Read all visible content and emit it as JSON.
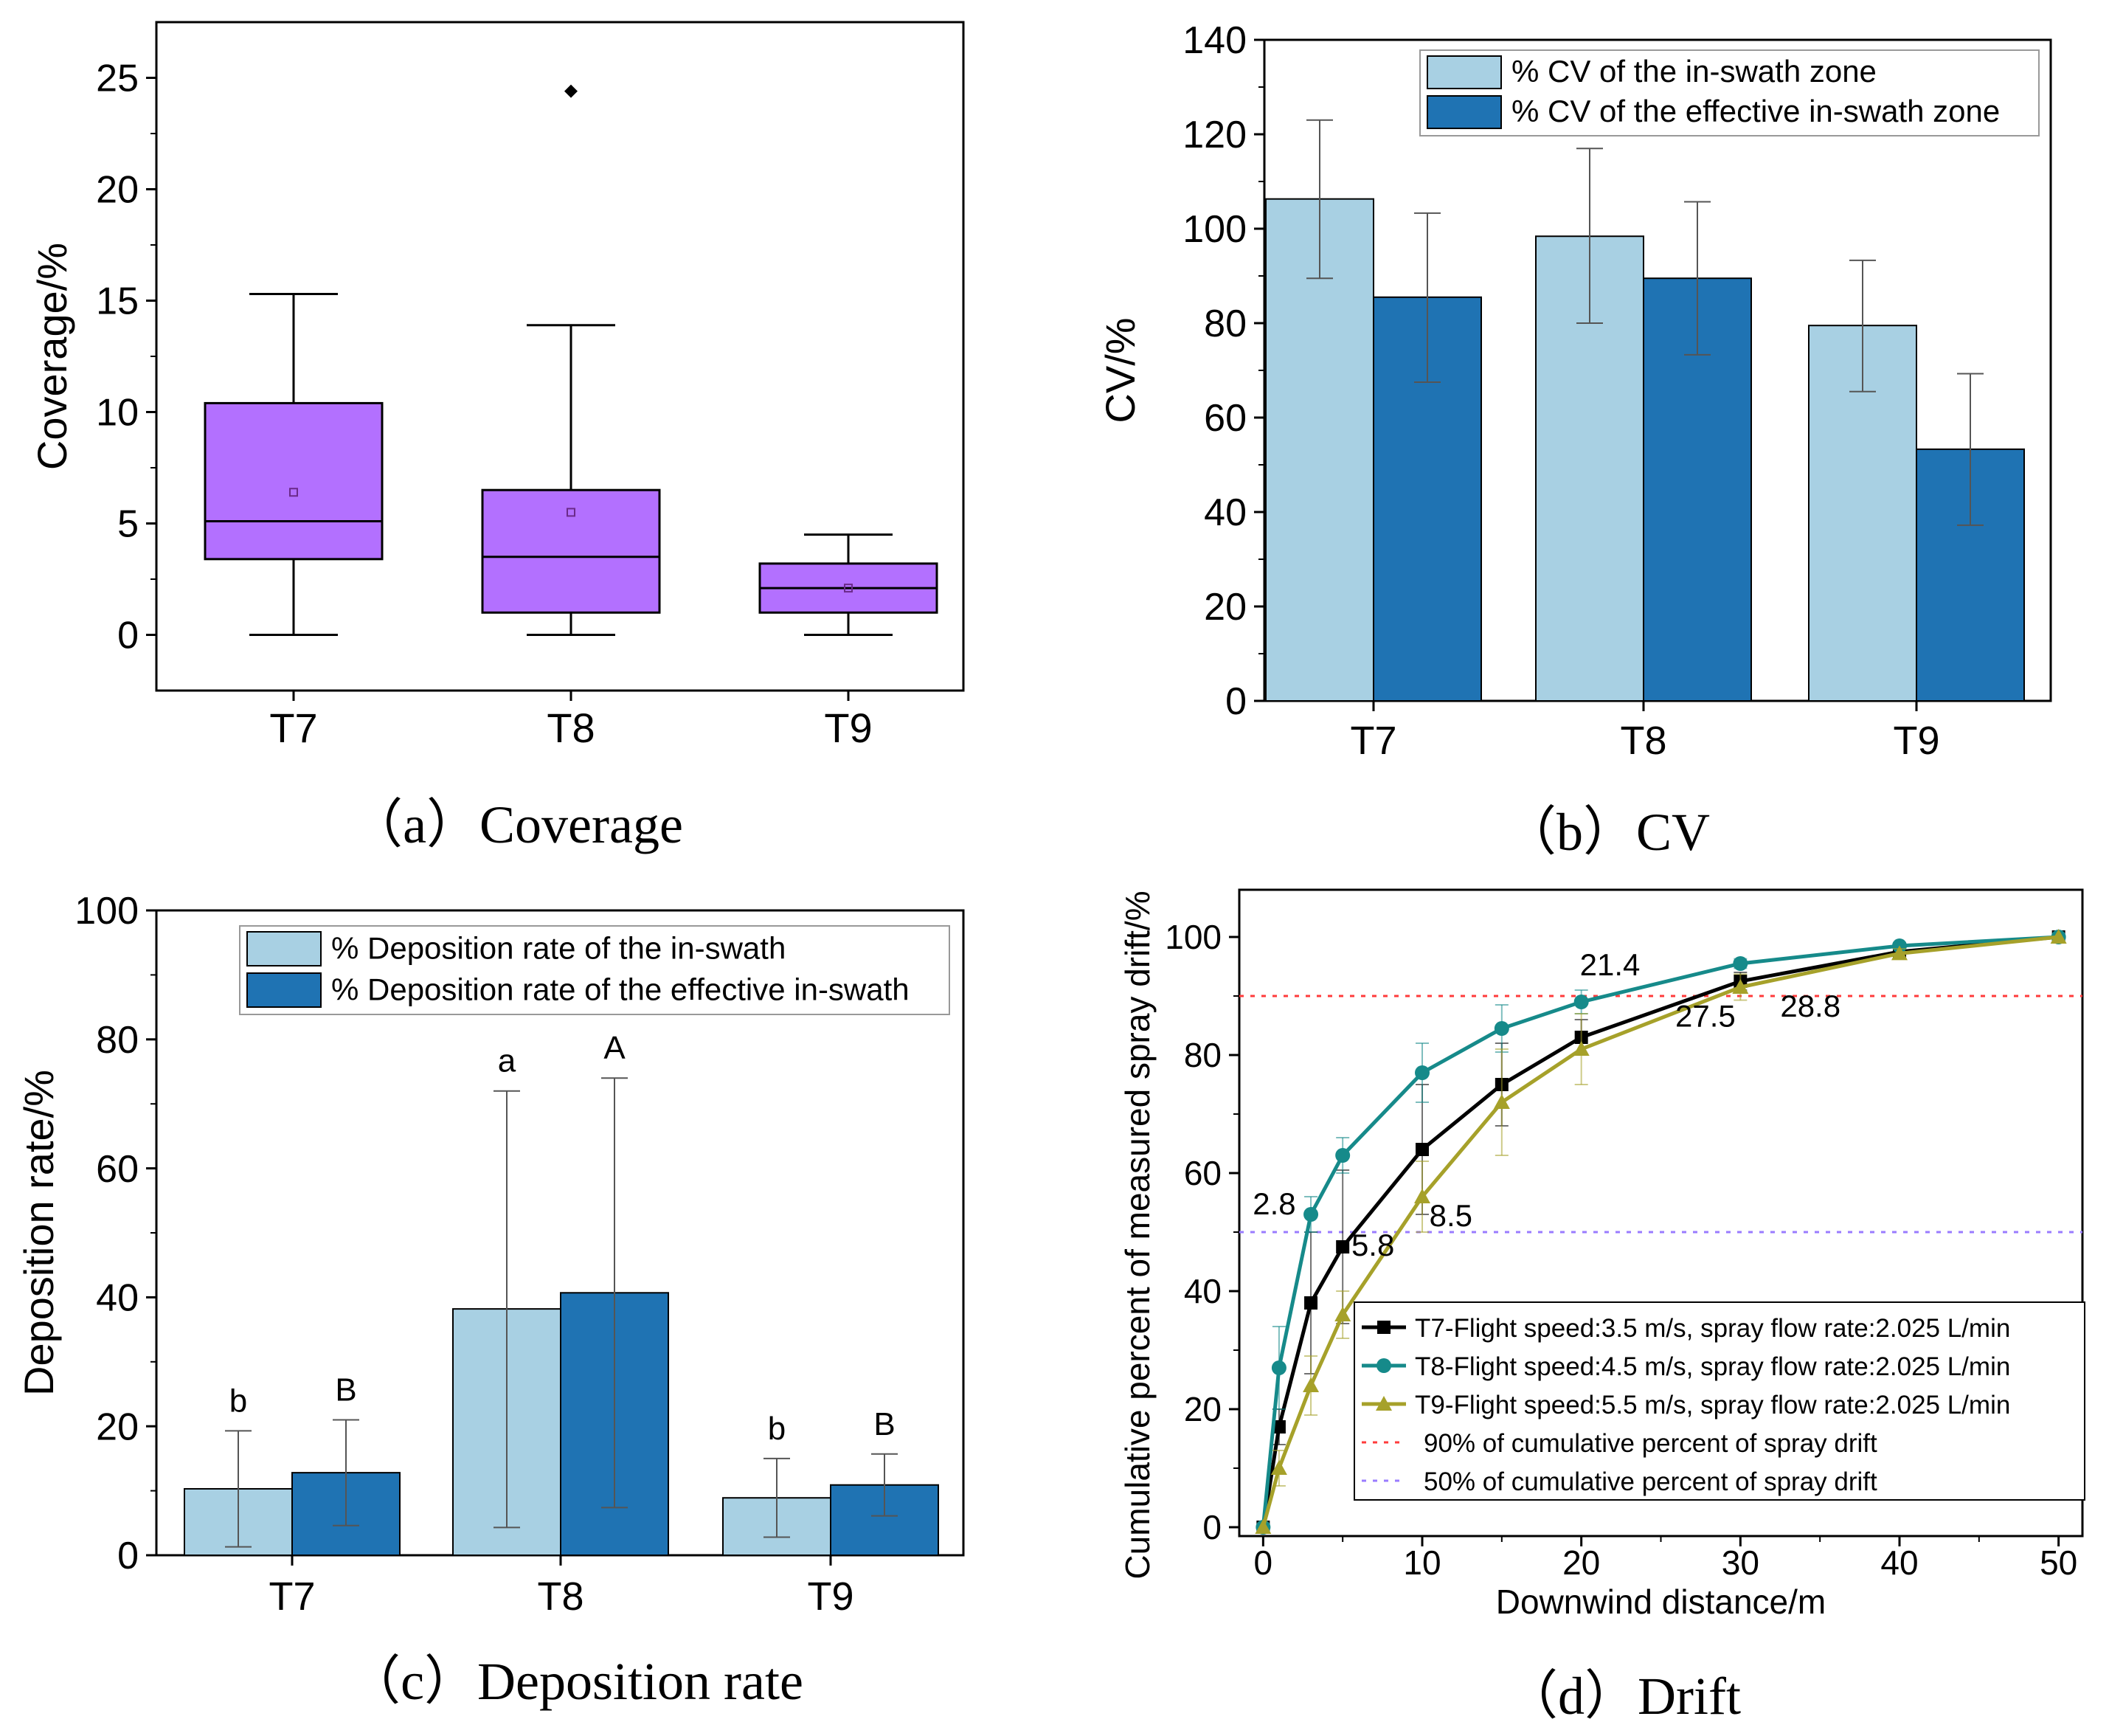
{
  "chart_data": [
    {
      "type": "box",
      "title": "",
      "caption": "（a）Coverage",
      "ylabel": "Coverage/%",
      "xlabel": "",
      "ylim": [
        -2.5,
        27.5
      ],
      "yticks": [
        0,
        5,
        10,
        15,
        20,
        25
      ],
      "grid": false,
      "box_color": "#b370ff",
      "categories": [
        "T7",
        "T8",
        "T9"
      ],
      "boxes": [
        {
          "name": "T7",
          "min": 0,
          "q1": 3.4,
          "median": 5.1,
          "q3": 10.4,
          "max": 15.3,
          "mean": 6.4,
          "outliers": []
        },
        {
          "name": "T8",
          "min": 0,
          "q1": 1.0,
          "median": 3.5,
          "q3": 6.5,
          "max": 13.9,
          "mean": 5.5,
          "outliers": [
            24.4
          ]
        },
        {
          "name": "T9",
          "min": 0,
          "q1": 1.0,
          "median": 2.1,
          "q3": 3.2,
          "max": 4.5,
          "mean": 2.1,
          "outliers": []
        }
      ]
    },
    {
      "type": "bar",
      "caption": "（b）CV",
      "ylabel": "CV/%",
      "xlabel": "",
      "ylim": [
        0,
        140
      ],
      "yticks": [
        0,
        20,
        40,
        60,
        80,
        100,
        120,
        140
      ],
      "grid": false,
      "legend_position": "top-right",
      "categories": [
        "T7",
        "T8",
        "T9"
      ],
      "series": [
        {
          "name": "% CV of the in-swath zone",
          "color": "#a8d0e3",
          "values": [
            106.3,
            98.4,
            79.5
          ],
          "err_low": [
            89.5,
            80.0,
            65.5
          ],
          "err_high": [
            123.0,
            117.0,
            93.3
          ]
        },
        {
          "name": "% CV of the effective in-swath zone",
          "color": "#1f73b3",
          "values": [
            85.5,
            89.5,
            53.3
          ],
          "err_low": [
            67.5,
            73.3,
            37.2
          ],
          "err_high": [
            103.3,
            105.7,
            69.3
          ]
        }
      ]
    },
    {
      "type": "bar",
      "caption": "（c）Deposition rate",
      "ylabel": "Deposition rate/%",
      "xlabel": "",
      "ylim": [
        0,
        100
      ],
      "yticks": [
        0,
        20,
        40,
        60,
        80,
        100
      ],
      "grid": false,
      "legend_position": "top-right",
      "categories": [
        "T7",
        "T8",
        "T9"
      ],
      "series": [
        {
          "name": "% Deposition rate of the in-swath",
          "color": "#a8d0e3",
          "values": [
            10.3,
            38.2,
            8.9
          ],
          "err_low": [
            1.3,
            4.3,
            2.8
          ],
          "err_high": [
            19.3,
            72.0,
            15.0
          ],
          "letters": [
            "b",
            "a",
            "b"
          ]
        },
        {
          "name": "% Deposition rate of the effective in-swath",
          "color": "#1f73b3",
          "values": [
            12.8,
            40.7,
            10.9
          ],
          "err_low": [
            4.6,
            7.4,
            6.1
          ],
          "err_high": [
            21.0,
            74.0,
            15.7
          ],
          "letters": [
            "B",
            "A",
            "B"
          ]
        }
      ]
    },
    {
      "type": "line",
      "caption": "（d）Drift",
      "xlabel": "Downwind distance/m",
      "ylabel": "Cumulative percent of measured spray drift/%",
      "xlim": [
        -1.5,
        51.5
      ],
      "ylim": [
        -1.5,
        108
      ],
      "xticks": [
        0,
        10,
        20,
        30,
        40,
        50
      ],
      "yticks": [
        0,
        20,
        40,
        60,
        80,
        100
      ],
      "grid": false,
      "legend_position": "bottom-right",
      "x": [
        0,
        1,
        3,
        5,
        10,
        15,
        20,
        30,
        40,
        50
      ],
      "series": [
        {
          "name": "T7-Flight speed:3.5 m/s, spray flow rate:2.025 L/min",
          "color": "#000000",
          "marker": "square",
          "values": [
            0,
            17,
            38,
            47.5,
            64,
            75,
            83,
            92.5,
            97.5,
            100
          ],
          "err": [
            0,
            3,
            12,
            13,
            11,
            7,
            3,
            1.5,
            0.6,
            0
          ]
        },
        {
          "name": "T8-Flight speed:4.5 m/s, spray flow rate:2.025 L/min",
          "color": "#168a8a",
          "marker": "circle",
          "values": [
            0,
            27,
            53,
            63,
            77,
            84.5,
            89,
            95.5,
            98.5,
            100
          ],
          "err": [
            0,
            7,
            3,
            3,
            5,
            4,
            2,
            0.8,
            0.5,
            0
          ]
        },
        {
          "name": "T9-Flight speed:5.5 m/s, spray flow rate:2.025 L/min",
          "color": "#a6a12a",
          "marker": "triangle",
          "values": [
            0,
            10,
            24,
            36,
            56,
            72,
            81,
            91.5,
            97.2,
            100
          ],
          "err": [
            0,
            3,
            5,
            4,
            6,
            9,
            6,
            2.2,
            0.8,
            0
          ]
        }
      ],
      "reference_lines": [
        {
          "name": "90% of cumulative percent of spray drift",
          "y": 90,
          "color": "#ff3b3b",
          "style": "dotted"
        },
        {
          "name": "50% of cumulative percent of spray drift",
          "y": 50,
          "color": "#9a7cff",
          "style": "dotted"
        }
      ],
      "annotations": [
        {
          "text": "2.8",
          "x": 0.7,
          "y": 53
        },
        {
          "text": "5.8",
          "x": 6.9,
          "y": 46
        },
        {
          "text": "8.5",
          "x": 11.8,
          "y": 51
        },
        {
          "text": "21.4",
          "x": 21.8,
          "y": 93.5
        },
        {
          "text": "27.5",
          "x": 27.8,
          "y": 84.8
        },
        {
          "text": "28.8",
          "x": 34.4,
          "y": 86.5
        }
      ]
    }
  ]
}
